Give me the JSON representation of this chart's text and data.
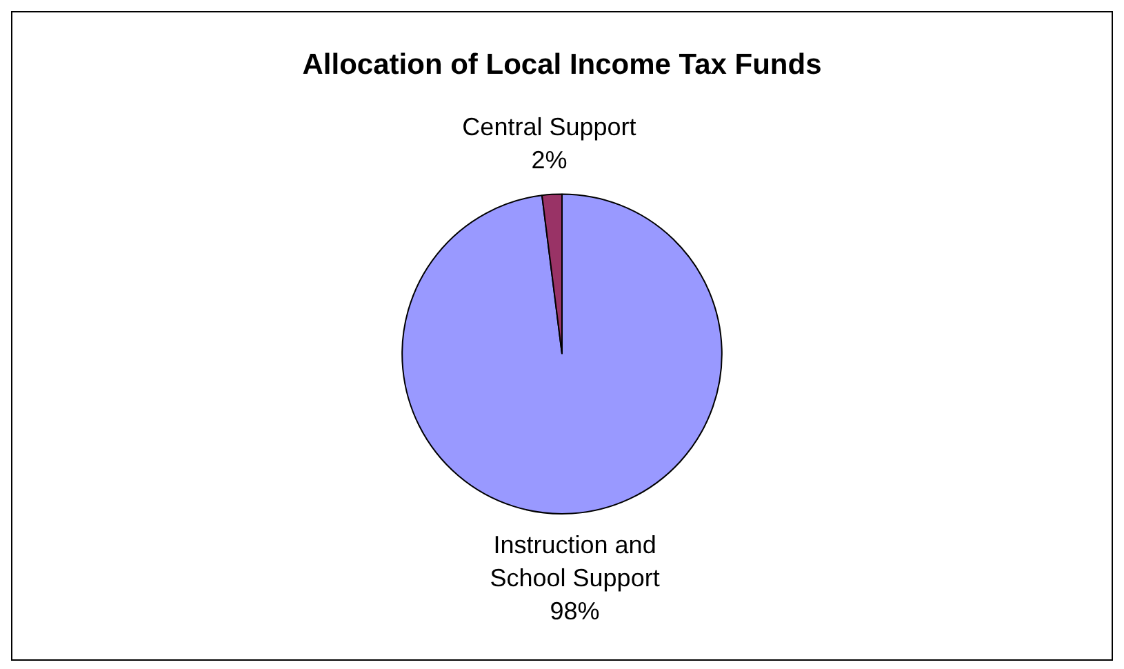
{
  "chart_data": {
    "type": "pie",
    "title": "Allocation of Local Income Tax Funds",
    "categories": [
      "Instruction and School Support",
      "Central Support"
    ],
    "values": [
      98,
      2
    ],
    "colors": [
      "#9999ff",
      "#993366"
    ],
    "value_labels": [
      "98%",
      "2%"
    ],
    "legend": false
  }
}
